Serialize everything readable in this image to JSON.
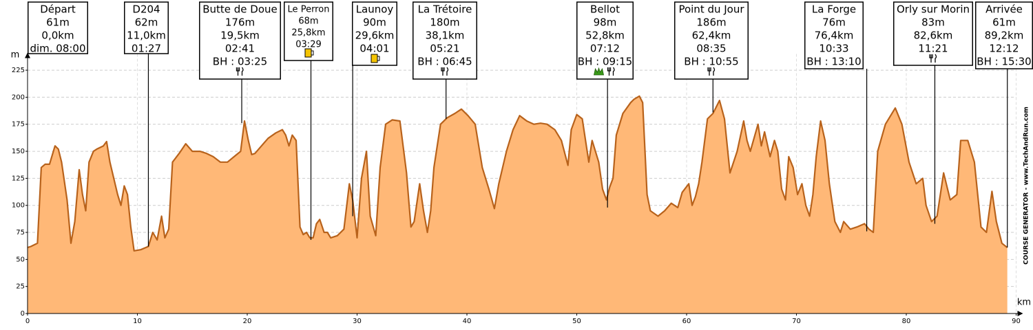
{
  "chart_data": {
    "type": "area",
    "y_axis_label": "m",
    "x_axis_label": "km",
    "watermark": "COURSE GENERATOR - www.TechAndRun.com",
    "xlim": [
      0,
      90
    ],
    "ylim": [
      0,
      240
    ],
    "xticks": [
      0,
      10,
      20,
      30,
      40,
      50,
      60,
      70,
      80,
      90
    ],
    "yticks": [
      0,
      25,
      50,
      75,
      100,
      125,
      150,
      175,
      200,
      225
    ],
    "grid": true,
    "fill_color": "#ffb877",
    "line_color": "#b8621b",
    "x": [
      0,
      0.3,
      0.9,
      1.25,
      1.6,
      2.0,
      2.5,
      2.8,
      3.1,
      3.6,
      3.95,
      4.3,
      4.7,
      5.0,
      5.3,
      5.6,
      6.0,
      6.3,
      6.9,
      7.2,
      7.5,
      8.2,
      8.5,
      8.8,
      9.1,
      9.4,
      9.7,
      10.3,
      11.0,
      11.4,
      11.8,
      12.2,
      12.5,
      12.85,
      13.2,
      13.8,
      14.4,
      15.0,
      15.7,
      16.3,
      16.9,
      17.55,
      18.2,
      18.8,
      19.4,
      19.75,
      20.1,
      20.4,
      20.7,
      21.3,
      21.9,
      22.6,
      23.2,
      23.5,
      23.8,
      24.1,
      24.45,
      24.8,
      25.1,
      25.4,
      25.7,
      26.0,
      26.3,
      26.6,
      27.0,
      27.3,
      27.6,
      28.2,
      28.8,
      29.3,
      29.6,
      30.0,
      30.4,
      30.85,
      31.2,
      31.7,
      32.1,
      32.6,
      33.2,
      33.9,
      34.5,
      34.9,
      35.2,
      35.7,
      36.05,
      36.4,
      36.7,
      37.0,
      37.6,
      38.2,
      38.9,
      39.5,
      40.1,
      40.75,
      41.4,
      42.0,
      42.5,
      42.9,
      43.6,
      44.2,
      44.8,
      45.45,
      46.1,
      46.7,
      47.3,
      48.0,
      48.6,
      49.2,
      49.5,
      50.0,
      50.5,
      51.1,
      51.4,
      52.0,
      52.35,
      52.7,
      53.0,
      53.3,
      53.6,
      54.2,
      54.9,
      55.2,
      55.7,
      56.0,
      56.4,
      56.7,
      57.4,
      58.0,
      58.6,
      59.2,
      59.6,
      60.2,
      60.5,
      60.8,
      61.1,
      61.4,
      61.9,
      62.4,
      63.0,
      63.45,
      63.95,
      64.6,
      65.2,
      65.5,
      65.8,
      66.5,
      66.8,
      67.1,
      67.6,
      68.0,
      68.3,
      68.65,
      69.0,
      69.3,
      69.7,
      70.1,
      70.5,
      70.85,
      71.2,
      71.5,
      71.8,
      72.2,
      72.6,
      73.0,
      73.5,
      74.0,
      74.3,
      74.9,
      75.5,
      76.2,
      76.6,
      77.0,
      77.4,
      78.1,
      79.0,
      79.6,
      80.25,
      80.9,
      81.5,
      81.8,
      82.3,
      82.8,
      83.4,
      84.0,
      84.6,
      84.95,
      85.6,
      86.2,
      86.8,
      87.3,
      87.8,
      88.2,
      88.7,
      89.2
    ],
    "values": [
      61,
      62,
      65,
      135,
      138,
      138,
      155,
      152,
      140,
      105,
      65,
      85,
      133,
      110,
      95,
      140,
      150,
      152,
      155,
      159,
      140,
      110,
      100,
      118,
      110,
      80,
      58,
      59,
      62,
      75,
      68,
      90,
      70,
      78,
      140,
      148,
      157,
      150,
      150,
      148,
      145,
      140,
      140,
      145,
      150,
      178,
      160,
      147,
      148,
      155,
      162,
      167,
      170,
      165,
      155,
      165,
      160,
      80,
      73,
      75,
      70,
      70,
      83,
      87,
      75,
      75,
      70,
      72,
      78,
      120,
      105,
      70,
      125,
      150,
      90,
      72,
      135,
      175,
      179,
      178,
      130,
      80,
      85,
      120,
      95,
      75,
      95,
      135,
      175,
      181,
      185,
      189,
      183,
      175,
      135,
      115,
      97,
      120,
      150,
      170,
      183,
      178,
      175,
      176,
      175,
      170,
      160,
      137,
      170,
      184,
      180,
      140,
      160,
      140,
      115,
      105,
      117,
      125,
      165,
      185,
      195,
      198,
      201,
      195,
      110,
      95,
      90,
      95,
      102,
      98,
      112,
      120,
      100,
      108,
      120,
      140,
      180,
      185,
      197,
      180,
      130,
      150,
      178,
      160,
      150,
      175,
      155,
      168,
      145,
      160,
      150,
      115,
      105,
      145,
      135,
      110,
      120,
      100,
      90,
      110,
      145,
      178,
      160,
      120,
      85,
      75,
      85,
      78,
      80,
      83,
      78,
      75,
      150,
      175,
      190,
      175,
      140,
      120,
      125,
      100,
      85,
      90,
      130,
      105,
      110,
      160,
      160,
      140,
      80,
      75,
      113,
      85,
      65,
      61
    ],
    "waypoints": [
      {
        "name": "Départ",
        "elevation": 61,
        "elevation_label": "61m",
        "km": 0,
        "km_label": "0,0km",
        "time": "dim. 08:00"
      },
      {
        "name": "D204",
        "elevation": 62,
        "elevation_label": "62m",
        "km": 11.0,
        "km_label": "11,0km",
        "time": "01:27"
      },
      {
        "name": "Butte de Doue",
        "elevation": 176,
        "elevation_label": "176m",
        "km": 19.5,
        "km_label": "19,5km",
        "time": "02:41",
        "bh": "BH : 03:25"
      },
      {
        "name": "Le Perron",
        "elevation": 68,
        "elevation_label": "68m",
        "km": 25.8,
        "km_label": "25,8km",
        "time": "03:29"
      },
      {
        "name": "Launoy",
        "elevation": 90,
        "elevation_label": "90m",
        "km": 29.6,
        "km_label": "29,6km",
        "time": "04:01"
      },
      {
        "name": "La Trétoire",
        "elevation": 180,
        "elevation_label": "180m",
        "km": 38.1,
        "km_label": "38,1km",
        "time": "05:21",
        "bh": "BH : 06:45"
      },
      {
        "name": "Bellot",
        "elevation": 98,
        "elevation_label": "98m",
        "km": 52.8,
        "km_label": "52,8km",
        "time": "07:12",
        "bh": "BH : 09:15"
      },
      {
        "name": "Point du Jour",
        "elevation": 186,
        "elevation_label": "186m",
        "km": 62.4,
        "km_label": "62,4km",
        "time": "08:35",
        "bh": "BH : 10:55"
      },
      {
        "name": "La Forge",
        "elevation": 76,
        "elevation_label": "76m",
        "km": 76.4,
        "km_label": "76,4km",
        "time": "10:33",
        "bh": "BH : 13:10"
      },
      {
        "name": "Orly sur Morin",
        "elevation": 83,
        "elevation_label": "83m",
        "km": 82.6,
        "km_label": "82,6km",
        "time": "11:21"
      },
      {
        "name": "Arrivée",
        "elevation": 61,
        "elevation_label": "61m",
        "km": 89.2,
        "km_label": "89,2km",
        "time": "12:12",
        "bh": "BH : 15:30"
      }
    ]
  }
}
